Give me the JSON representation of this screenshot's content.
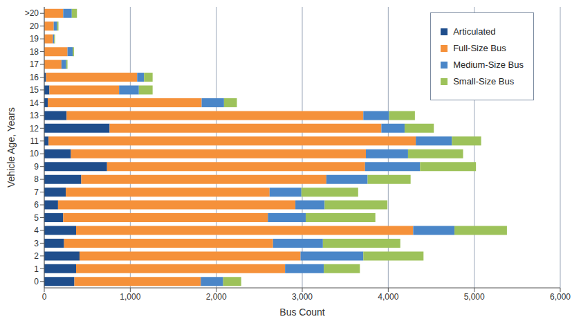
{
  "chart_data": {
    "type": "bar",
    "orientation": "horizontal",
    "stacked": true,
    "grid": true,
    "legend": "upper right",
    "x_label": "Bus Count",
    "y_label": "Vehicle Age, Years",
    "categories": [
      "0",
      "1",
      "2",
      "3",
      "4",
      "5",
      "6",
      "7",
      "8",
      "9",
      "10",
      "11",
      "12",
      "13",
      "14",
      "15",
      "16",
      "17",
      "18",
      "19",
      "20",
      ">20"
    ],
    "series": [
      {
        "name": "Articulated",
        "color": "#1f4e8c",
        "values": [
          350,
          370,
          410,
          230,
          370,
          220,
          160,
          250,
          430,
          730,
          310,
          50,
          760,
          260,
          40,
          60,
          20,
          0,
          0,
          0,
          0,
          0
        ]
      },
      {
        "name": "Full-Size Bus",
        "color": "#f5913a",
        "values": [
          1470,
          2430,
          2570,
          2430,
          3920,
          2380,
          2760,
          2370,
          2850,
          3000,
          3430,
          4270,
          3160,
          3450,
          1790,
          810,
          1060,
          200,
          270,
          100,
          110,
          220
        ]
      },
      {
        "name": "Medium-Size Bus",
        "color": "#4a86c8",
        "values": [
          260,
          450,
          730,
          580,
          480,
          440,
          340,
          370,
          480,
          640,
          490,
          420,
          270,
          300,
          260,
          230,
          80,
          55,
          60,
          15,
          40,
          100
        ]
      },
      {
        "name": "Small-Size Bus",
        "color": "#9dc25a",
        "values": [
          210,
          420,
          700,
          900,
          610,
          810,
          730,
          660,
          500,
          650,
          640,
          340,
          340,
          300,
          150,
          160,
          100,
          15,
          15,
          10,
          15,
          60
        ]
      }
    ],
    "xlim": [
      0,
      6000
    ],
    "xticks": [
      0,
      {
        "value": 1000,
        "label": "1,000"
      },
      {
        "value": 2000,
        "label": "2,000"
      },
      {
        "value": 3000,
        "label": "3,000"
      },
      {
        "value": 4000,
        "label": "4,000"
      },
      {
        "value": 5000,
        "label": "5,000"
      },
      {
        "value": 6000,
        "label": "6,000"
      }
    ]
  }
}
